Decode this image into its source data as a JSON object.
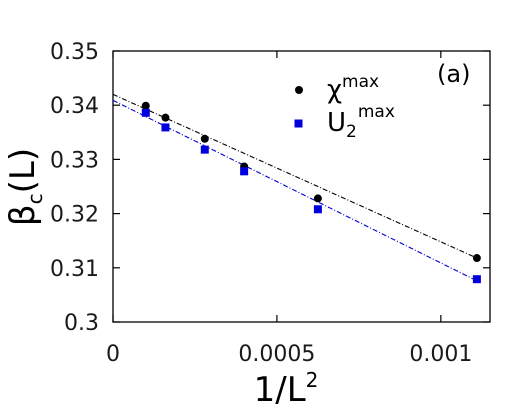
{
  "chart_data": {
    "type": "scatter",
    "panel_label": "(a)",
    "xlabel": {
      "main": "1/L",
      "sup": "2"
    },
    "ylabel": {
      "main": "β",
      "sub": "c",
      "rest": "(L)"
    },
    "xlim": [
      0,
      0.00115
    ],
    "ylim": [
      0.3,
      0.35
    ],
    "x_ticks": [
      0,
      0.0005,
      0.001
    ],
    "x_tick_labels": [
      "0",
      "0.0005",
      "0.001"
    ],
    "y_ticks": [
      0.3,
      0.31,
      0.32,
      0.33,
      0.34,
      0.35
    ],
    "y_tick_labels": [
      "0.3",
      "0.31",
      "0.32",
      "0.33",
      "0.34",
      "0.35"
    ],
    "grid": false,
    "legend_position": "top-right",
    "series": [
      {
        "name": {
          "main": "χ",
          "sup": "max"
        },
        "marker": "circle",
        "color": "#000000",
        "x": [
          0.0001,
          0.00016,
          0.00028,
          0.0004,
          0.000625,
          0.00111
        ],
        "y": [
          0.3399,
          0.3377,
          0.3338,
          0.3287,
          0.3228,
          0.3118
        ],
        "fit": {
          "x": [
            0,
            0.00111
          ],
          "y": [
            0.342,
            0.3118
          ]
        }
      },
      {
        "name": {
          "main": "U",
          "sub": "2",
          "sup": "max"
        },
        "marker": "square",
        "color": "#0000dd",
        "x": [
          0.0001,
          0.00016,
          0.00028,
          0.0004,
          0.000625,
          0.00111
        ],
        "y": [
          0.3386,
          0.3359,
          0.3318,
          0.3278,
          0.3208,
          0.3079
        ],
        "fit": {
          "x": [
            0,
            0.00111
          ],
          "y": [
            0.3409,
            0.3076
          ]
        }
      }
    ]
  }
}
